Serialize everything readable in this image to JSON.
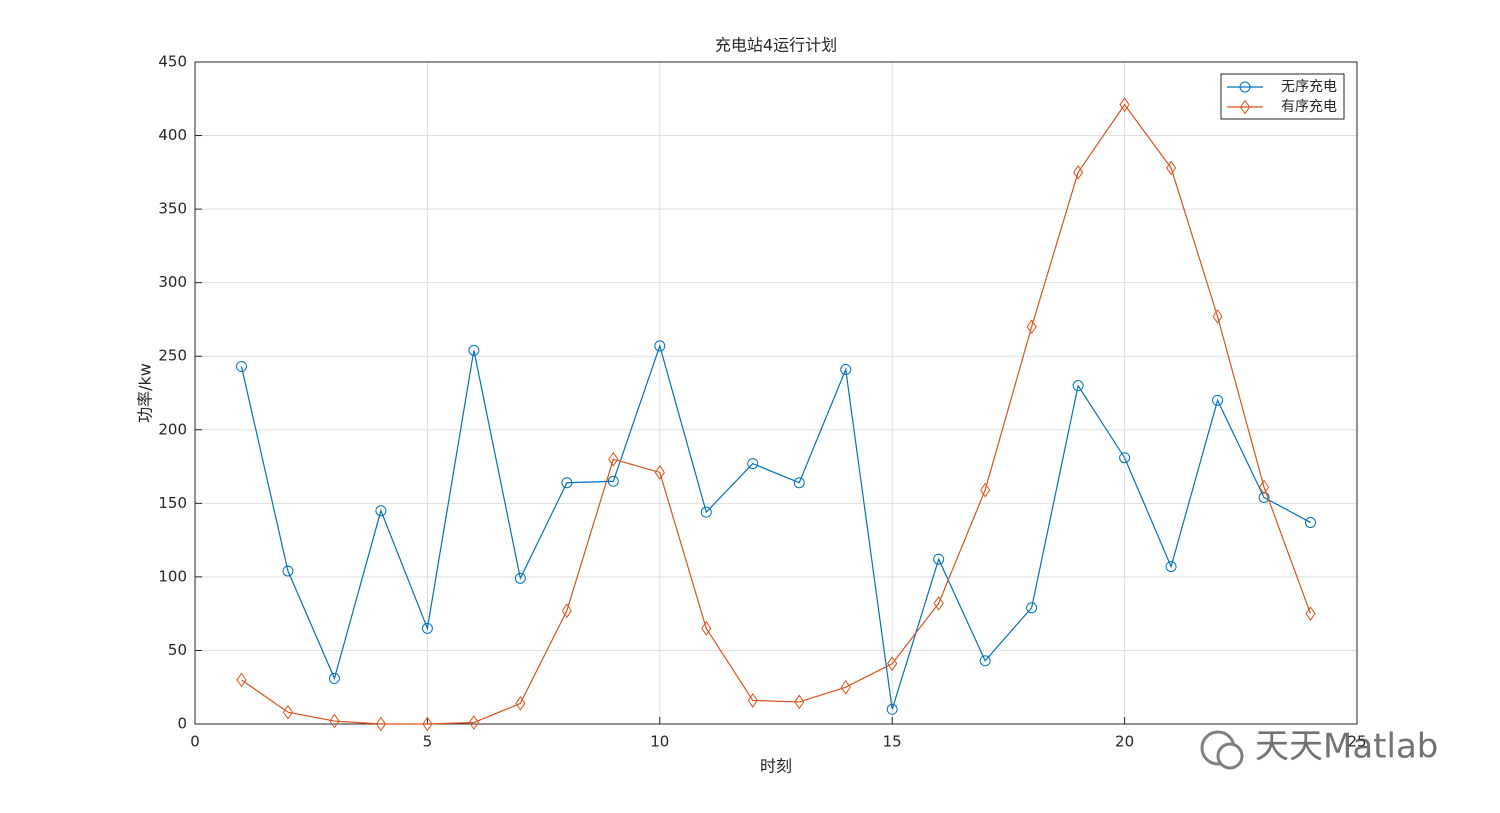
{
  "chart_data": {
    "type": "line",
    "title": "充电站4运行计划",
    "x_label": "时刻",
    "y_label": "功率/kw",
    "x": [
      1,
      2,
      3,
      4,
      5,
      6,
      7,
      8,
      9,
      10,
      11,
      12,
      13,
      14,
      15,
      16,
      17,
      18,
      19,
      20,
      21,
      22,
      23,
      24
    ],
    "series": [
      {
        "name": "无序充电",
        "color": "#0072bd",
        "marker": "circle",
        "values": [
          243,
          104,
          31,
          145,
          65,
          254,
          99,
          164,
          165,
          257,
          144,
          177,
          164,
          241,
          10,
          112,
          43,
          79,
          230,
          181,
          107,
          220,
          154,
          137
        ]
      },
      {
        "name": "有序充电",
        "color": "#d95319",
        "marker": "diamond",
        "values": [
          30,
          8,
          2,
          0,
          0,
          1,
          14,
          77,
          180,
          171,
          65,
          16,
          15,
          25,
          41,
          82,
          159,
          270,
          375,
          421,
          378,
          277,
          161,
          75
        ]
      }
    ],
    "xlim": [
      0,
      25
    ],
    "xticks": [
      0,
      5,
      10,
      15,
      20,
      25
    ],
    "ylim": [
      0,
      450
    ],
    "yticks": [
      0,
      50,
      100,
      150,
      200,
      250,
      300,
      350,
      400,
      450
    ],
    "grid": true,
    "legend": "top-right",
    "watermark": "天天Matlab"
  }
}
